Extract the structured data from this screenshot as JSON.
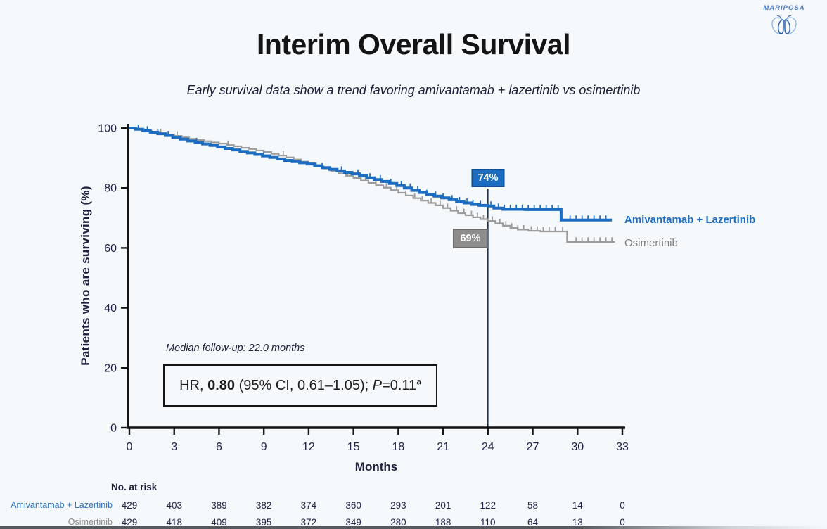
{
  "slide": {
    "title": "Interim Overall Survival",
    "subtitle": "Early survival data show a trend favoring amivantamab + lazertinib vs osimertinib",
    "logo_text": "MARIPOSA"
  },
  "annotations": {
    "median_followup": "Median follow-up: 22.0 months",
    "hr": {
      "prefix": "HR, ",
      "value": "0.80",
      "ci": " (95% CI, 0.61–1.05); ",
      "p_label": "P",
      "p_value": "=0.11",
      "superscript": "a"
    },
    "blue_marker_label": "74%",
    "gray_marker_label": "69%",
    "marker_month": 24
  },
  "legend": {
    "series1": "Amivantamab + Lazertinib",
    "series2": "Osimertinib"
  },
  "chart_data": {
    "type": "line",
    "subtype": "kaplan-meier-step",
    "title": "Interim Overall Survival",
    "xlabel": "Months",
    "ylabel": "Patients who are surviving (%)",
    "xlim": [
      0,
      33
    ],
    "ylim": [
      0,
      100
    ],
    "x_ticks": [
      0,
      3,
      6,
      9,
      12,
      15,
      18,
      21,
      24,
      27,
      30,
      33
    ],
    "y_ticks": [
      0,
      20,
      40,
      60,
      80,
      100
    ],
    "grid": false,
    "legend_position": "right-of-curve-ends",
    "reference_line_x": 24,
    "series": [
      {
        "name": "Osimertinib",
        "color": "#9c9c9c",
        "landmark_24mo_survival_pct": 69,
        "steps": [
          [
            0,
            100
          ],
          [
            0.5,
            99.5
          ],
          [
            1,
            99.0
          ],
          [
            1.5,
            98.6
          ],
          [
            2,
            98.2
          ],
          [
            2.5,
            97.8
          ],
          [
            3,
            97.4
          ],
          [
            3.5,
            96.9
          ],
          [
            4,
            96.4
          ],
          [
            4.5,
            96.0
          ],
          [
            5,
            95.6
          ],
          [
            5.5,
            95.2
          ],
          [
            6,
            94.8
          ],
          [
            6.5,
            94.3
          ],
          [
            7,
            93.9
          ],
          [
            7.5,
            93.4
          ],
          [
            8,
            93.0
          ],
          [
            8.5,
            92.5
          ],
          [
            9,
            92.0
          ],
          [
            9.5,
            91.4
          ],
          [
            10,
            90.8
          ],
          [
            10.5,
            90.2
          ],
          [
            11,
            89.5
          ],
          [
            11.5,
            88.8
          ],
          [
            12,
            88.1
          ],
          [
            12.5,
            87.3
          ],
          [
            13,
            86.5
          ],
          [
            13.5,
            85.7
          ],
          [
            14,
            84.9
          ],
          [
            14.5,
            84.1
          ],
          [
            15,
            83.3
          ],
          [
            15.5,
            82.5
          ],
          [
            16,
            81.7
          ],
          [
            16.5,
            80.9
          ],
          [
            17,
            80.1
          ],
          [
            17.5,
            79.3
          ],
          [
            18,
            78.4
          ],
          [
            18.5,
            77.5
          ],
          [
            19,
            76.6
          ],
          [
            19.5,
            75.8
          ],
          [
            20,
            75.0
          ],
          [
            20.5,
            74.2
          ],
          [
            21,
            73.3
          ],
          [
            21.5,
            72.4
          ],
          [
            22,
            71.6
          ],
          [
            22.5,
            70.9
          ],
          [
            23,
            70.2
          ],
          [
            23.5,
            69.6
          ],
          [
            24,
            69
          ],
          [
            24.5,
            68.2
          ],
          [
            25,
            67.4
          ],
          [
            25.5,
            66.7
          ],
          [
            26,
            66.1
          ],
          [
            26.7,
            65.7
          ],
          [
            27.5,
            65.5
          ],
          [
            29.3,
            62.0
          ],
          [
            32.5,
            62.0
          ]
        ],
        "censor_times": [
          2.1,
          3.2,
          6.6,
          10.3,
          14.6,
          15.8,
          16.5,
          17.2,
          17.9,
          18.5,
          19.1,
          19.6,
          20.2,
          20.8,
          21.3,
          21.9,
          22.4,
          22.9,
          23.3,
          23.7,
          24.3,
          24.8,
          25.2,
          25.6,
          26.0,
          26.4,
          26.9,
          27.3,
          27.7,
          28.1,
          28.5,
          29.0,
          29.9,
          30.3,
          30.7,
          31.1,
          31.5,
          31.9,
          32.3
        ]
      },
      {
        "name": "Amivantamab + Lazertinib",
        "color": "#1c6dc1",
        "landmark_24mo_survival_pct": 74,
        "steps": [
          [
            0,
            100
          ],
          [
            0.4,
            99.6
          ],
          [
            0.9,
            99.1
          ],
          [
            1.4,
            98.6
          ],
          [
            1.9,
            98.1
          ],
          [
            2.4,
            97.5
          ],
          [
            2.9,
            96.9
          ],
          [
            3.4,
            96.3
          ],
          [
            3.9,
            95.7
          ],
          [
            4.4,
            95.2
          ],
          [
            4.9,
            94.7
          ],
          [
            5.4,
            94.2
          ],
          [
            5.9,
            93.7
          ],
          [
            6.4,
            93.2
          ],
          [
            6.9,
            92.7
          ],
          [
            7.4,
            92.2
          ],
          [
            7.9,
            91.7
          ],
          [
            8.4,
            91.2
          ],
          [
            8.9,
            90.7
          ],
          [
            9.4,
            90.2
          ],
          [
            9.9,
            89.7
          ],
          [
            10.4,
            89.2
          ],
          [
            10.9,
            88.8
          ],
          [
            11.4,
            88.4
          ],
          [
            11.9,
            88.0
          ],
          [
            12.4,
            87.4
          ],
          [
            12.9,
            86.8
          ],
          [
            13.4,
            86.2
          ],
          [
            13.9,
            85.7
          ],
          [
            14.4,
            85.2
          ],
          [
            14.9,
            84.7
          ],
          [
            15.4,
            84.1
          ],
          [
            15.9,
            83.4
          ],
          [
            16.4,
            82.8
          ],
          [
            16.9,
            82.2
          ],
          [
            17.4,
            81.5
          ],
          [
            17.9,
            80.8
          ],
          [
            18.4,
            80.0
          ],
          [
            18.9,
            79.2
          ],
          [
            19.4,
            78.5
          ],
          [
            19.9,
            77.9
          ],
          [
            20.4,
            77.3
          ],
          [
            20.9,
            76.7
          ],
          [
            21.4,
            76.1
          ],
          [
            21.9,
            75.5
          ],
          [
            22.4,
            75.0
          ],
          [
            22.9,
            74.5
          ],
          [
            23.4,
            74.2
          ],
          [
            24,
            74
          ],
          [
            24.4,
            73.3
          ],
          [
            25,
            72.9
          ],
          [
            26.5,
            72.8
          ],
          [
            28.9,
            69.3
          ],
          [
            32.3,
            69.3
          ]
        ],
        "censor_times": [
          0.6,
          1.2,
          1.9,
          2.6,
          4.5,
          9.0,
          12.9,
          14.2,
          15.3,
          16.1,
          16.8,
          17.5,
          18.2,
          18.8,
          19.3,
          19.9,
          20.5,
          21.0,
          21.6,
          22.1,
          22.6,
          23.0,
          23.5,
          24.2,
          24.7,
          25.1,
          25.5,
          25.9,
          26.3,
          26.7,
          27.1,
          27.5,
          27.9,
          28.3,
          28.7,
          29.5,
          29.9,
          30.3,
          30.7,
          31.1,
          31.5,
          31.9
        ]
      }
    ]
  },
  "risk_table": {
    "header": "No. at risk",
    "time_points": [
      0,
      3,
      6,
      9,
      12,
      15,
      18,
      21,
      24,
      27,
      30,
      33
    ],
    "rows": [
      {
        "label": "Amivantamab + Lazertinib",
        "color": "#2d6fc0",
        "values": [
          429,
          403,
          389,
          382,
          374,
          360,
          293,
          201,
          122,
          58,
          14,
          0
        ]
      },
      {
        "label": "Osimertinib",
        "color": "#8a8a8a",
        "values": [
          429,
          418,
          409,
          395,
          372,
          349,
          280,
          188,
          110,
          64,
          13,
          0
        ]
      }
    ]
  },
  "colors": {
    "background": "#f6f9fc",
    "title_text": "#141414",
    "navy_text": "#22224a",
    "blue_series": "#1c6dc1",
    "blue_box_border": "#0e4f97",
    "gray_series": "#9c9c9c",
    "gray_box": "#8d8d8d",
    "reference_line": "#16305e",
    "logo_blue": "#4b7cc7"
  }
}
